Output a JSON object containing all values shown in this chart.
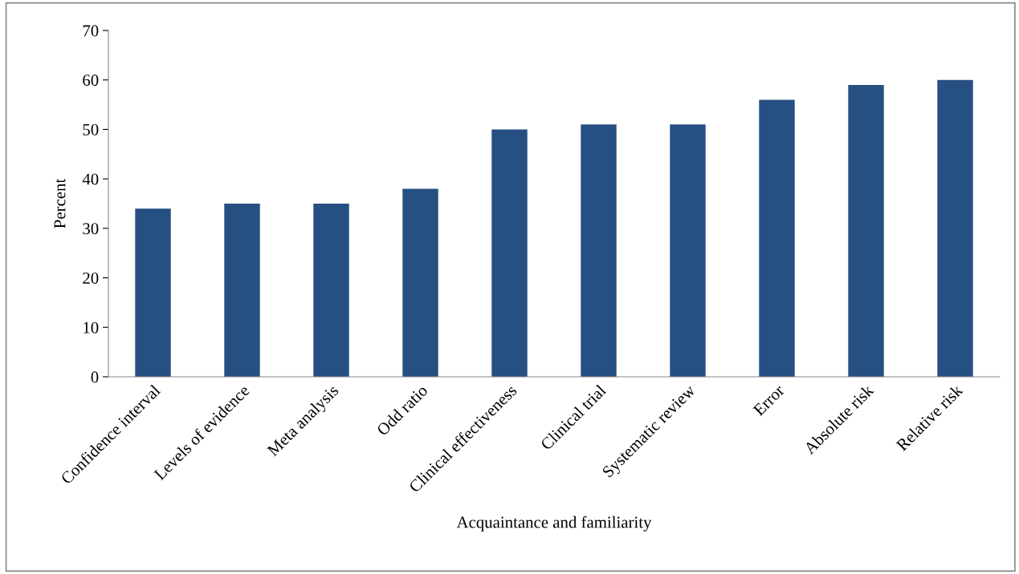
{
  "chart_data": {
    "type": "bar",
    "xlabel": "Acquaintance and familiarity",
    "ylabel": "Percent",
    "categories": [
      "Confidence interval",
      "Levels of evidence",
      "Meta analysis",
      "Odd ratio",
      "Clinical effectiveness",
      "Clinical trial",
      "Systematic review",
      "Error",
      "Absolute risk",
      "Relative risk"
    ],
    "values": [
      34,
      35,
      35,
      38,
      50,
      51,
      51,
      56,
      59,
      60
    ],
    "color": "#264f82",
    "ylim": [
      0,
      70
    ],
    "yticks": [
      0,
      10,
      20,
      30,
      40,
      50,
      60,
      70
    ],
    "grid": false,
    "legend": false
  }
}
